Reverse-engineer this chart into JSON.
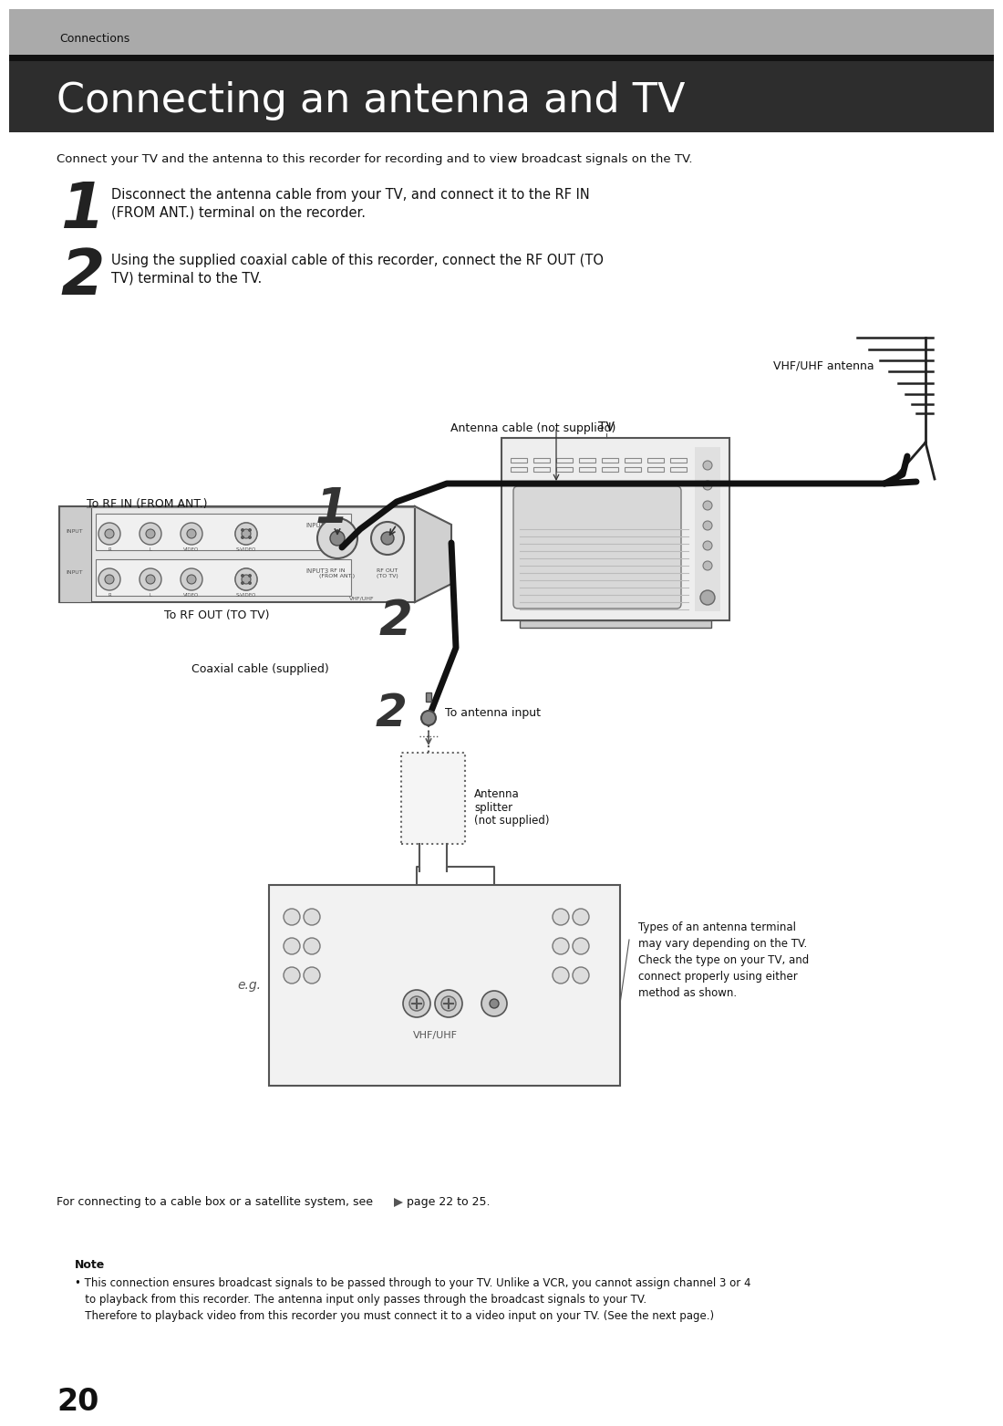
{
  "bg_color": "#ffffff",
  "header_bg": "#aaaaaa",
  "title_bg": "#2d2d2d",
  "title_color": "#ffffff",
  "text_color": "#111111",
  "header_text": "Connections",
  "title_text": "Connecting an antenna and TV",
  "subtitle": "Connect your TV and the antenna to this recorder for recording and to view broadcast signals on the TV.",
  "step1_num": "1",
  "step1_line1": "Disconnect the antenna cable from your TV, and connect it to the RF IN",
  "step1_line2": "(FROM ANT.) terminal on the recorder.",
  "step2_num": "2",
  "step2_line1": "Using the supplied coaxial cable of this recorder, connect the RF OUT (TO",
  "step2_line2": "TV) terminal to the TV.",
  "label_vhf": "VHF/UHF antenna",
  "label_ant_cable": "Antenna cable (not supplied)",
  "label_rf_in": "To RF IN (FROM ANT.)",
  "label_rf_out": "To RF OUT (TO TV)",
  "label_coax": "Coaxial cable (supplied)",
  "label_tv": "TV",
  "label_ant_input": "To antenna input",
  "label_splitter": "Antenna\nsplitter\n(not supplied)",
  "label_eg": "e.g.",
  "label_vhf_uhf": "VHF/UHF",
  "label_types": "Types of an antenna terminal\nmay vary depending on the TV.\nCheck the type on your TV, and\nconnect properly using either\nmethod as shown.",
  "footer_text": "For connecting to a cable box or a satellite system, see",
  "footer_page": "page 22 to 25.",
  "note_title": "Note",
  "note_bullet": "• This connection ensures broadcast signals to be passed through to your TV. Unlike a VCR, you cannot assign channel 3 or 4\n   to playback from this recorder. The antenna input only passes through the broadcast signals to your TV.\n   Therefore to playback video from this recorder you must connect it to a video input on your TV. (See the next page.)",
  "page_num": "20"
}
